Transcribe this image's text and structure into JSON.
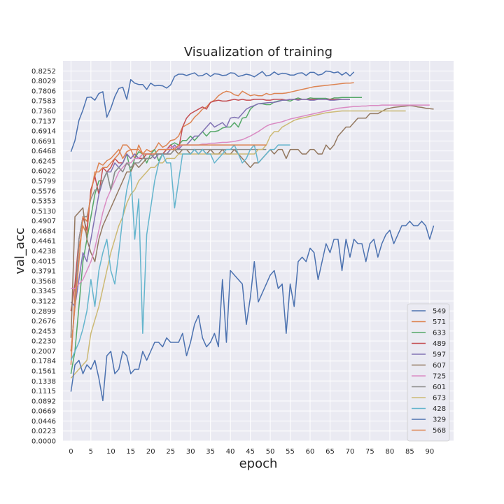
{
  "chart_data": {
    "type": "line",
    "title": "Visualization of training",
    "xlabel": "epoch",
    "ylabel": "val_acc",
    "xlim": [
      -2,
      96
    ],
    "ylim": [
      0,
      0.8476
    ],
    "xticks": [
      0,
      5,
      10,
      15,
      20,
      25,
      30,
      35,
      40,
      45,
      50,
      55,
      60,
      65,
      70,
      75,
      80,
      85,
      90
    ],
    "yticks": [
      "0.0000",
      "0.0223",
      "0.0446",
      "0.0669",
      "0.0892",
      "0.1115",
      "0.1338",
      "0.1561",
      "0.1784",
      "0.2007",
      "0.2230",
      "0.2453",
      "0.2676",
      "0.2899",
      "0.3122",
      "0.3345",
      "0.3568",
      "0.3791",
      "0.4015",
      "0.4238",
      "0.4461",
      "0.4684",
      "0.4907",
      "0.5130",
      "0.5353",
      "0.5576",
      "0.5799",
      "0.6022",
      "0.6245",
      "0.6468",
      "0.6691",
      "0.6914",
      "0.7137",
      "0.7360",
      "0.7583",
      "0.7806",
      "0.8029",
      "0.8252"
    ],
    "grid": true,
    "legend_position": "lower-right",
    "series": [
      {
        "name": "549",
        "color": "#4c72b0",
        "values": [
          0.645,
          0.67,
          0.715,
          0.738,
          0.766,
          0.767,
          0.76,
          0.775,
          0.779,
          0.722,
          0.742,
          0.768,
          0.786,
          0.789,
          0.762,
          0.806,
          0.798,
          0.795,
          0.795,
          0.784,
          0.798,
          0.792,
          0.793,
          0.792,
          0.787,
          0.794,
          0.813,
          0.818,
          0.818,
          0.815,
          0.818,
          0.821,
          0.814,
          0.815,
          0.82,
          0.813,
          0.819,
          0.818,
          0.815,
          0.816,
          0.821,
          0.82,
          0.813,
          0.815,
          0.818,
          0.816,
          0.812,
          0.818,
          0.824,
          0.814,
          0.816,
          0.823,
          0.817,
          0.82,
          0.819,
          0.816,
          0.816,
          0.82,
          0.821,
          0.815,
          0.822,
          0.822,
          0.816,
          0.818,
          0.825,
          0.824,
          0.821,
          0.823,
          0.816,
          0.822,
          0.814,
          0.823
        ]
      },
      {
        "name": "571",
        "color": "#dd8452",
        "values": [
          0.17,
          0.33,
          0.43,
          0.48,
          0.46,
          0.56,
          0.59,
          0.62,
          0.615,
          0.625,
          0.63,
          0.64,
          0.65,
          0.63,
          0.645,
          0.65,
          0.63,
          0.66,
          0.64,
          0.65,
          0.645,
          0.65,
          0.665,
          0.655,
          0.66,
          0.67,
          0.672,
          0.68,
          0.7,
          0.705,
          0.71,
          0.722,
          0.73,
          0.74,
          0.745,
          0.755,
          0.76,
          0.77,
          0.776,
          0.78,
          0.778,
          0.772,
          0.77,
          0.78,
          0.775,
          0.77,
          0.772,
          0.77,
          0.77,
          0.775,
          0.772,
          0.775,
          0.775,
          0.775,
          0.776,
          0.778,
          0.78,
          0.782,
          0.784,
          0.786,
          0.788,
          0.79,
          0.791,
          0.792,
          0.793,
          0.794,
          0.795,
          0.796,
          0.797,
          0.798,
          0.798,
          0.799
        ]
      },
      {
        "name": "633",
        "color": "#55a868",
        "values": [
          0.15,
          0.2,
          0.3,
          0.4,
          0.45,
          0.5,
          0.55,
          0.58,
          0.58,
          0.6,
          0.56,
          0.6,
          0.61,
          0.62,
          0.64,
          0.6,
          0.63,
          0.645,
          0.64,
          0.62,
          0.64,
          0.65,
          0.625,
          0.64,
          0.65,
          0.66,
          0.665,
          0.66,
          0.67,
          0.67,
          0.68,
          0.67,
          0.68,
          0.69,
          0.68,
          0.69,
          0.69,
          0.692,
          0.698,
          0.7,
          0.7,
          0.71,
          0.7,
          0.72,
          0.722,
          0.74,
          0.748,
          0.752,
          0.752,
          0.75,
          0.75,
          0.756,
          0.758,
          0.76,
          0.76,
          0.758,
          0.762,
          0.765,
          0.762,
          0.762,
          0.765,
          0.764,
          0.764,
          0.764,
          0.764,
          0.762,
          0.765,
          0.765,
          0.766,
          0.766,
          0.766,
          0.766,
          0.766,
          0.766
        ]
      },
      {
        "name": "489",
        "color": "#c44e52",
        "values": [
          0.29,
          0.35,
          0.45,
          0.5,
          0.47,
          0.56,
          0.59,
          0.55,
          0.61,
          0.6,
          0.61,
          0.63,
          0.62,
          0.62,
          0.64,
          0.63,
          0.64,
          0.63,
          0.63,
          0.64,
          0.64,
          0.63,
          0.64,
          0.64,
          0.65,
          0.66,
          0.65,
          0.65,
          0.7,
          0.72,
          0.73,
          0.735,
          0.74,
          0.745,
          0.74,
          0.755,
          0.758,
          0.76,
          0.758,
          0.758,
          0.76,
          0.762,
          0.76,
          0.762,
          0.76,
          0.76,
          0.762,
          0.762,
          0.762,
          0.76,
          0.76,
          0.762,
          0.762,
          0.762,
          0.76,
          0.762,
          0.762,
          0.762,
          0.762,
          0.762,
          0.762,
          0.762,
          0.762,
          0.762,
          0.762,
          0.762,
          0.762,
          0.762,
          0.762,
          0.762,
          0.762
        ]
      },
      {
        "name": "597",
        "color": "#8172b3",
        "values": [
          0.31,
          0.3,
          0.36,
          0.42,
          0.4,
          0.45,
          0.5,
          0.55,
          0.58,
          0.6,
          0.6,
          0.62,
          0.61,
          0.62,
          0.64,
          0.63,
          0.64,
          0.63,
          0.64,
          0.64,
          0.64,
          0.63,
          0.64,
          0.64,
          0.64,
          0.65,
          0.66,
          0.65,
          0.66,
          0.66,
          0.67,
          0.68,
          0.68,
          0.69,
          0.7,
          0.71,
          0.7,
          0.705,
          0.71,
          0.7,
          0.72,
          0.722,
          0.72,
          0.73,
          0.74,
          0.745,
          0.748,
          0.752,
          0.753,
          0.754,
          0.755,
          0.755,
          0.757,
          0.76,
          0.76,
          0.762,
          0.762,
          0.76,
          0.762,
          0.762,
          0.76,
          0.76,
          0.762,
          0.762,
          0.762,
          0.76,
          0.76,
          0.761,
          0.762,
          0.762,
          0.762
        ]
      },
      {
        "name": "607",
        "color": "#937860",
        "values": [
          0.23,
          0.5,
          0.51,
          0.52,
          0.45,
          0.42,
          0.4,
          0.45,
          0.48,
          0.5,
          0.52,
          0.54,
          0.56,
          0.58,
          0.6,
          0.6,
          0.62,
          0.61,
          0.62,
          0.63,
          0.63,
          0.64,
          0.64,
          0.64,
          0.64,
          0.64,
          0.65,
          0.64,
          0.65,
          0.65,
          0.64,
          0.65,
          0.64,
          0.65,
          0.64,
          0.65,
          0.64,
          0.64,
          0.65,
          0.64,
          0.64,
          0.65,
          0.64,
          0.63,
          0.62,
          0.61,
          0.62,
          0.62,
          0.63,
          0.64,
          0.65,
          0.64,
          0.65,
          0.65,
          0.63,
          0.65,
          0.65,
          0.65,
          0.64,
          0.64,
          0.65,
          0.65,
          0.64,
          0.64,
          0.66,
          0.65,
          0.66,
          0.68,
          0.69,
          0.7,
          0.7,
          0.71,
          0.72,
          0.72,
          0.72,
          0.73,
          0.73,
          0.73,
          0.735,
          0.74,
          0.742,
          0.744,
          0.745,
          0.746,
          0.747,
          0.748,
          0.747,
          0.745,
          0.744,
          0.742,
          0.741,
          0.74
        ]
      },
      {
        "name": "725",
        "color": "#da8bc3",
        "values": [
          0.34,
          0.34,
          0.35,
          0.36,
          0.38,
          0.4,
          0.43,
          0.47,
          0.51,
          0.54,
          0.56,
          0.58,
          0.6,
          0.61,
          0.62,
          0.62,
          0.63,
          0.63,
          0.64,
          0.64,
          0.64,
          0.64,
          0.65,
          0.65,
          0.65,
          0.655,
          0.655,
          0.655,
          0.66,
          0.66,
          0.66,
          0.66,
          0.66,
          0.662,
          0.662,
          0.664,
          0.664,
          0.665,
          0.666,
          0.666,
          0.667,
          0.668,
          0.67,
          0.672,
          0.676,
          0.68,
          0.685,
          0.69,
          0.696,
          0.702,
          0.706,
          0.708,
          0.71,
          0.712,
          0.715,
          0.718,
          0.72,
          0.722,
          0.724,
          0.726,
          0.728,
          0.73,
          0.732,
          0.734,
          0.736,
          0.738,
          0.74,
          0.742,
          0.743,
          0.744,
          0.745,
          0.746,
          0.746,
          0.747,
          0.747,
          0.748,
          0.748,
          0.748,
          0.749,
          0.749,
          0.749,
          0.749,
          0.749,
          0.749,
          0.749,
          0.749,
          0.749,
          0.749,
          0.749,
          0.749,
          0.749
        ]
      },
      {
        "name": "601",
        "color": "#8c8c8c",
        "values": [
          0.2,
          0.3,
          0.45,
          0.5,
          0.5,
          0.54,
          0.56,
          0.56,
          0.58,
          0.6,
          0.56,
          0.6,
          0.61,
          0.6,
          0.62,
          0.61,
          0.62,
          0.62,
          0.63,
          0.63,
          0.63,
          0.64,
          0.64,
          0.64,
          0.64,
          0.64,
          0.65,
          0.65,
          0.65,
          0.65,
          0.65,
          0.65,
          0.65,
          0.65,
          0.65,
          0.65,
          0.65,
          0.65,
          0.65,
          0.65,
          0.65,
          0.65,
          0.65,
          0.65,
          0.65,
          0.65,
          0.65,
          0.65,
          0.65,
          0.65
        ]
      },
      {
        "name": "673",
        "color": "#ccb974",
        "values": [
          0.14,
          0.15,
          0.16,
          0.17,
          0.18,
          0.24,
          0.27,
          0.3,
          0.34,
          0.38,
          0.42,
          0.45,
          0.48,
          0.5,
          0.53,
          0.55,
          0.56,
          0.58,
          0.59,
          0.6,
          0.61,
          0.61,
          0.62,
          0.62,
          0.63,
          0.63,
          0.63,
          0.64,
          0.64,
          0.64,
          0.64,
          0.64,
          0.64,
          0.64,
          0.64,
          0.64,
          0.64,
          0.64,
          0.64,
          0.64,
          0.64,
          0.64,
          0.64,
          0.64,
          0.64,
          0.64,
          0.64,
          0.65,
          0.65,
          0.66,
          0.68,
          0.69,
          0.69,
          0.7,
          0.705,
          0.71,
          0.715,
          0.718,
          0.72,
          0.722,
          0.724,
          0.726,
          0.728,
          0.73,
          0.732,
          0.733,
          0.734,
          0.735,
          0.736,
          0.736,
          0.736,
          0.736,
          0.736,
          0.736,
          0.736,
          0.736,
          0.736,
          0.736,
          0.736,
          0.736,
          0.736,
          0.736,
          0.736,
          0.736,
          0.736
        ]
      },
      {
        "name": "428",
        "color": "#64b5cd",
        "values": [
          0.18,
          0.2,
          0.22,
          0.25,
          0.29,
          0.36,
          0.3,
          0.38,
          0.42,
          0.45,
          0.38,
          0.35,
          0.42,
          0.5,
          0.56,
          0.6,
          0.45,
          0.54,
          0.24,
          0.46,
          0.52,
          0.58,
          0.62,
          0.64,
          0.62,
          0.62,
          0.52,
          0.58,
          0.64,
          0.64,
          0.64,
          0.65,
          0.64,
          0.65,
          0.64,
          0.64,
          0.62,
          0.63,
          0.64,
          0.65,
          0.65,
          0.66,
          0.64,
          0.62,
          0.63,
          0.65,
          0.66,
          0.62,
          0.63,
          0.64,
          0.65,
          0.65,
          0.66,
          0.66,
          0.66,
          0.66
        ]
      },
      {
        "name": "329",
        "color": "#4c72b0",
        "values": [
          0.11,
          0.17,
          0.18,
          0.15,
          0.17,
          0.16,
          0.18,
          0.14,
          0.09,
          0.19,
          0.2,
          0.15,
          0.16,
          0.2,
          0.19,
          0.15,
          0.16,
          0.16,
          0.2,
          0.18,
          0.2,
          0.22,
          0.22,
          0.21,
          0.23,
          0.22,
          0.22,
          0.22,
          0.24,
          0.19,
          0.22,
          0.26,
          0.28,
          0.23,
          0.21,
          0.22,
          0.24,
          0.21,
          0.36,
          0.22,
          0.38,
          0.37,
          0.36,
          0.35,
          0.26,
          0.32,
          0.4,
          0.31,
          0.33,
          0.35,
          0.37,
          0.38,
          0.34,
          0.35,
          0.24,
          0.35,
          0.3,
          0.4,
          0.41,
          0.4,
          0.43,
          0.42,
          0.36,
          0.4,
          0.44,
          0.42,
          0.45,
          0.45,
          0.38,
          0.45,
          0.41,
          0.45,
          0.44,
          0.44,
          0.4,
          0.44,
          0.45,
          0.41,
          0.44,
          0.46,
          0.47,
          0.44,
          0.46,
          0.48,
          0.48,
          0.49,
          0.48,
          0.48,
          0.49,
          0.48,
          0.45,
          0.48
        ]
      },
      {
        "name": "568",
        "color": "#dd8452",
        "values": [
          0.2,
          0.3,
          0.4,
          0.5,
          0.49,
          0.55,
          0.6,
          0.6,
          0.61,
          0.61,
          0.62,
          0.63,
          0.64,
          0.66,
          0.66,
          0.65,
          0.65,
          0.65,
          0.64,
          0.64,
          0.64,
          0.64,
          0.65,
          0.65,
          0.65,
          0.65,
          0.65,
          0.66,
          0.66,
          0.66,
          0.66,
          0.66,
          0.66,
          0.66,
          0.66,
          0.66,
          0.66,
          0.66,
          0.66,
          0.66,
          0.66,
          0.66,
          0.66,
          0.66,
          0.66,
          0.66,
          0.66,
          0.66,
          0.66,
          0.66
        ]
      }
    ]
  }
}
